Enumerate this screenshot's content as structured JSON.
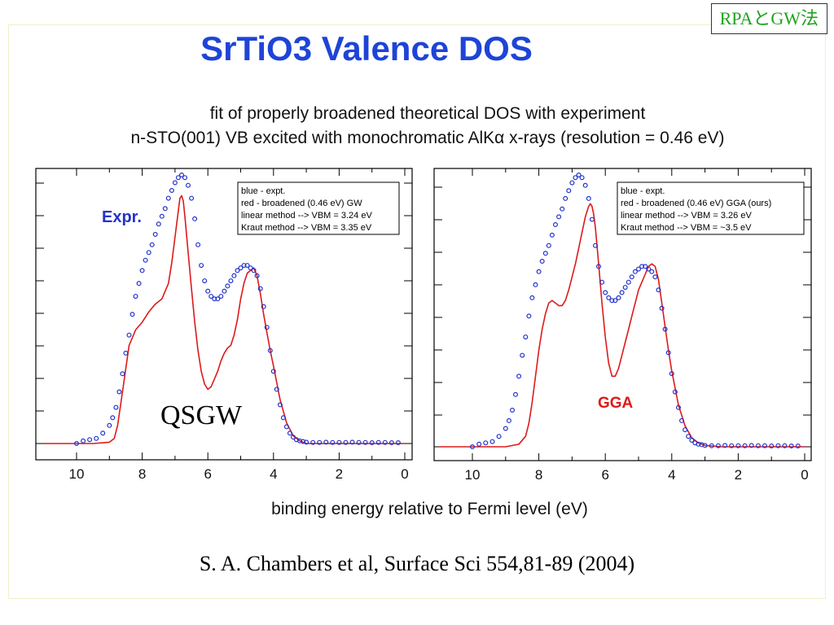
{
  "corner_tag": "RPAとGW法",
  "title": "SrTiO3 Valence DOS",
  "subtitle_line1": "fit of properly broadened theoretical DOS with experiment",
  "subtitle_line2": "n-STO(001) VB excited with monochromatic AlKα x-rays (resolution = 0.46 eV)",
  "xlabel": "binding energy relative to Fermi level (eV)",
  "citation": "S. A. Chambers et al, Surface Sci 554,81-89 (2004)",
  "colors": {
    "expt": "#2233cc",
    "theory": "#dd1a1a",
    "title": "#1e44d8",
    "tag": "#1fa31f"
  },
  "chart_data": [
    {
      "type": "line",
      "panel": "left",
      "xlim": [
        11,
        0
      ],
      "ylim": [
        -0.02,
        1.1
      ],
      "xticks": [
        "10",
        "8",
        "6",
        "4",
        "2",
        "0"
      ],
      "legend": [
        "blue - expt.",
        "red - broadened (0.46 eV) GW",
        "linear method --> VBM = 3.24 eV",
        "Kraut method --> VBM = 3.35 eV"
      ],
      "legend_position": "top-right",
      "annotations": [
        "Expr.",
        "QSGW"
      ],
      "series": [
        {
          "name": "blue - expt.",
          "style": "scatter",
          "x": [
            10.0,
            9.8,
            9.6,
            9.4,
            9.2,
            9.0,
            8.9,
            8.8,
            8.7,
            8.6,
            8.5,
            8.4,
            8.3,
            8.2,
            8.1,
            8.0,
            7.9,
            7.8,
            7.7,
            7.6,
            7.5,
            7.4,
            7.3,
            7.2,
            7.1,
            7.0,
            6.9,
            6.8,
            6.7,
            6.6,
            6.5,
            6.4,
            6.3,
            6.2,
            6.1,
            6.0,
            5.9,
            5.8,
            5.7,
            5.6,
            5.5,
            5.4,
            5.3,
            5.2,
            5.1,
            5.0,
            4.9,
            4.8,
            4.7,
            4.6,
            4.5,
            4.4,
            4.3,
            4.2,
            4.1,
            4.0,
            3.9,
            3.8,
            3.7,
            3.6,
            3.5,
            3.4,
            3.3,
            3.2,
            3.1,
            3.0,
            2.8,
            2.6,
            2.4,
            2.2,
            2.0,
            1.8,
            1.6,
            1.4,
            1.2,
            1.0,
            0.8,
            0.6,
            0.4,
            0.2
          ],
          "y": [
            0.0,
            0.01,
            0.015,
            0.02,
            0.04,
            0.07,
            0.1,
            0.14,
            0.2,
            0.27,
            0.35,
            0.42,
            0.5,
            0.57,
            0.62,
            0.67,
            0.71,
            0.74,
            0.77,
            0.81,
            0.85,
            0.88,
            0.91,
            0.95,
            0.98,
            1.01,
            1.03,
            1.04,
            1.03,
            1.0,
            0.95,
            0.87,
            0.77,
            0.69,
            0.63,
            0.59,
            0.57,
            0.56,
            0.56,
            0.57,
            0.59,
            0.61,
            0.63,
            0.65,
            0.67,
            0.68,
            0.69,
            0.69,
            0.68,
            0.67,
            0.65,
            0.6,
            0.53,
            0.45,
            0.36,
            0.28,
            0.21,
            0.15,
            0.1,
            0.065,
            0.04,
            0.025,
            0.015,
            0.01,
            0.008,
            0.005,
            0.004,
            0.004,
            0.005,
            0.004,
            0.004,
            0.004,
            0.005,
            0.004,
            0.004,
            0.003,
            0.004,
            0.004,
            0.003,
            0.003
          ]
        },
        {
          "name": "red - broadened (0.46 eV) GW",
          "style": "line",
          "x": [
            11.0,
            9.5,
            9.0,
            8.85,
            8.75,
            8.6,
            8.4,
            8.2,
            8.0,
            7.8,
            7.6,
            7.4,
            7.2,
            7.1,
            7.0,
            6.9,
            6.85,
            6.8,
            6.75,
            6.7,
            6.6,
            6.5,
            6.4,
            6.3,
            6.2,
            6.1,
            6.0,
            5.9,
            5.8,
            5.7,
            5.6,
            5.5,
            5.4,
            5.3,
            5.2,
            5.1,
            5.0,
            4.9,
            4.8,
            4.7,
            4.6,
            4.5,
            4.4,
            4.3,
            4.2,
            4.1,
            4.0,
            3.8,
            3.6,
            3.4,
            3.2,
            3.0,
            2.5,
            2.0,
            1.0,
            0.0
          ],
          "y": [
            0.0,
            0.0,
            0.005,
            0.02,
            0.07,
            0.2,
            0.38,
            0.44,
            0.47,
            0.51,
            0.54,
            0.56,
            0.62,
            0.7,
            0.8,
            0.9,
            0.95,
            0.96,
            0.94,
            0.88,
            0.74,
            0.6,
            0.47,
            0.36,
            0.28,
            0.23,
            0.21,
            0.22,
            0.25,
            0.28,
            0.32,
            0.35,
            0.37,
            0.38,
            0.42,
            0.48,
            0.56,
            0.62,
            0.66,
            0.67,
            0.68,
            0.65,
            0.58,
            0.5,
            0.43,
            0.36,
            0.3,
            0.17,
            0.08,
            0.03,
            0.01,
            0.0,
            0.0,
            0.0,
            0.0,
            0.0
          ]
        }
      ]
    },
    {
      "type": "line",
      "panel": "right",
      "xlim": [
        11,
        0
      ],
      "ylim": [
        -0.02,
        1.1
      ],
      "xticks": [
        "10",
        "8",
        "6",
        "4",
        "2",
        "0"
      ],
      "legend": [
        "blue - expt.",
        "red - broadened (0.46 eV) GGA (ours)",
        "linear method --> VBM = 3.26 eV",
        "Kraut method --> VBM = ~3.5 eV"
      ],
      "legend_position": "top-right",
      "annotations": [
        "GGA"
      ],
      "series": [
        {
          "name": "blue - expt.",
          "style": "scatter",
          "x": [
            10.0,
            9.8,
            9.6,
            9.4,
            9.2,
            9.0,
            8.9,
            8.8,
            8.7,
            8.6,
            8.5,
            8.4,
            8.3,
            8.2,
            8.1,
            8.0,
            7.9,
            7.8,
            7.7,
            7.6,
            7.5,
            7.4,
            7.3,
            7.2,
            7.1,
            7.0,
            6.9,
            6.8,
            6.7,
            6.6,
            6.5,
            6.4,
            6.3,
            6.2,
            6.1,
            6.0,
            5.9,
            5.8,
            5.7,
            5.6,
            5.5,
            5.4,
            5.3,
            5.2,
            5.1,
            5.0,
            4.9,
            4.8,
            4.7,
            4.6,
            4.5,
            4.4,
            4.3,
            4.2,
            4.1,
            4.0,
            3.9,
            3.8,
            3.7,
            3.6,
            3.5,
            3.4,
            3.3,
            3.2,
            3.1,
            3.0,
            2.8,
            2.6,
            2.4,
            2.2,
            2.0,
            1.8,
            1.6,
            1.4,
            1.2,
            1.0,
            0.8,
            0.6,
            0.4,
            0.2
          ],
          "y": [
            0.0,
            0.01,
            0.015,
            0.02,
            0.04,
            0.07,
            0.1,
            0.14,
            0.2,
            0.27,
            0.35,
            0.42,
            0.5,
            0.57,
            0.62,
            0.67,
            0.71,
            0.74,
            0.77,
            0.81,
            0.85,
            0.88,
            0.91,
            0.95,
            0.98,
            1.01,
            1.03,
            1.04,
            1.03,
            1.0,
            0.95,
            0.87,
            0.77,
            0.69,
            0.63,
            0.59,
            0.57,
            0.56,
            0.56,
            0.57,
            0.59,
            0.61,
            0.63,
            0.65,
            0.67,
            0.68,
            0.69,
            0.69,
            0.68,
            0.67,
            0.65,
            0.6,
            0.53,
            0.45,
            0.36,
            0.28,
            0.21,
            0.15,
            0.1,
            0.065,
            0.04,
            0.025,
            0.015,
            0.01,
            0.008,
            0.005,
            0.004,
            0.004,
            0.005,
            0.004,
            0.004,
            0.004,
            0.005,
            0.004,
            0.004,
            0.003,
            0.004,
            0.004,
            0.003,
            0.003
          ]
        },
        {
          "name": "red - broadened (0.46 eV) GGA (ours)",
          "style": "line",
          "x": [
            11.0,
            9.0,
            8.6,
            8.4,
            8.3,
            8.2,
            8.1,
            8.0,
            7.9,
            7.8,
            7.7,
            7.6,
            7.5,
            7.4,
            7.3,
            7.2,
            7.1,
            7.0,
            6.9,
            6.8,
            6.7,
            6.6,
            6.5,
            6.45,
            6.4,
            6.35,
            6.3,
            6.2,
            6.1,
            6.0,
            5.9,
            5.8,
            5.7,
            5.6,
            5.5,
            5.4,
            5.3,
            5.2,
            5.1,
            5.0,
            4.9,
            4.8,
            4.7,
            4.6,
            4.5,
            4.4,
            4.3,
            4.2,
            4.1,
            4.0,
            3.8,
            3.6,
            3.4,
            3.2,
            3.0,
            2.5,
            2.0,
            1.0,
            0.0
          ],
          "y": [
            0.0,
            0.0,
            0.01,
            0.04,
            0.09,
            0.17,
            0.27,
            0.37,
            0.45,
            0.51,
            0.55,
            0.56,
            0.55,
            0.54,
            0.54,
            0.56,
            0.6,
            0.65,
            0.7,
            0.76,
            0.82,
            0.88,
            0.92,
            0.93,
            0.92,
            0.89,
            0.84,
            0.7,
            0.55,
            0.42,
            0.32,
            0.27,
            0.27,
            0.3,
            0.35,
            0.4,
            0.45,
            0.5,
            0.55,
            0.6,
            0.63,
            0.66,
            0.69,
            0.7,
            0.69,
            0.64,
            0.55,
            0.46,
            0.37,
            0.29,
            0.16,
            0.08,
            0.035,
            0.015,
            0.005,
            0.0,
            0.0,
            0.0,
            0.0
          ]
        }
      ]
    }
  ]
}
